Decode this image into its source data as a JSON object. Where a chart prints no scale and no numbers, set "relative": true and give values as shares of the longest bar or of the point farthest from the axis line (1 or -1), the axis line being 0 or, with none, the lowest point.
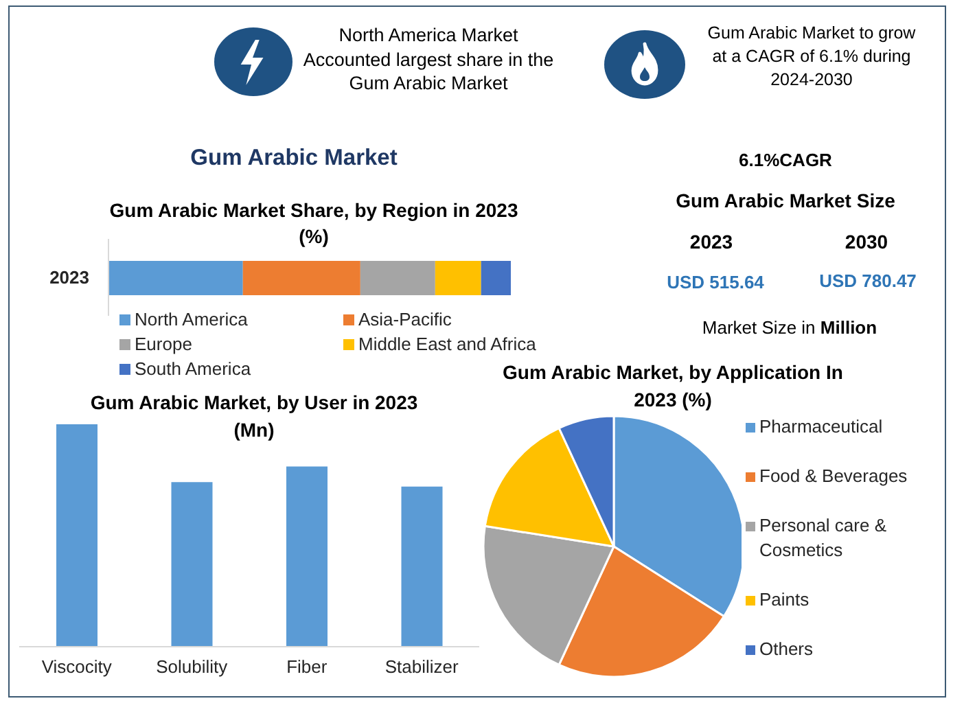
{
  "chart_data": [
    {
      "type": "other",
      "title": "Gum Arabic Market",
      "annotations": [
        "North America Market Accounted largest share in the Gum Arabic Market",
        "Gum Arabic Market to grow at a CAGR of 6.1% during 2024-2030"
      ]
    },
    {
      "type": "bar",
      "title": "Gum Arabic Market Share, by Region in 2023 (%)",
      "orientation": "horizontal",
      "stacked": true,
      "relative": true,
      "categories": [
        "2023"
      ],
      "series": [
        {
          "name": "North America",
          "color": "#5b9bd5",
          "values": [
            0.334
          ]
        },
        {
          "name": "Asia-Pacific",
          "color": "#ed7d31",
          "values": [
            0.292
          ]
        },
        {
          "name": "Europe",
          "color": "#a5a5a5",
          "values": [
            0.186
          ]
        },
        {
          "name": "Middle East and Africa",
          "color": "#ffc000",
          "values": [
            0.114
          ]
        },
        {
          "name": "South America",
          "color": "#4472c4",
          "values": [
            0.074
          ]
        }
      ],
      "legend": "bottom"
    },
    {
      "type": "other",
      "title": "Gum Arabic Market Size",
      "annotations": [
        "6.1%CAGR",
        "2023",
        "2030",
        "USD 515.64",
        "USD 780.47",
        "Market Size in Million"
      ]
    },
    {
      "type": "bar",
      "title": "Gum Arabic Market, by User in 2023 (Mn)",
      "relative": true,
      "categories": [
        "Viscocity",
        "Solubility",
        "Fiber",
        "Stabilizer"
      ],
      "values": [
        1,
        0.74,
        0.81,
        0.72
      ],
      "color": "#5b9bd5"
    },
    {
      "type": "pie",
      "title": "Gum Arabic Market, by Application In 2023 (%)",
      "categories": [
        "Pharmaceutical",
        "Food & Beverages",
        "Personal care & Cosmetics",
        "Paints",
        "Others"
      ],
      "values": [
        34,
        22.9,
        20.6,
        15.6,
        6.9
      ],
      "colors": [
        "#5b9bd5",
        "#ed7d31",
        "#a5a5a5",
        "#ffc000",
        "#4472c4"
      ],
      "legend": "right"
    }
  ]
}
